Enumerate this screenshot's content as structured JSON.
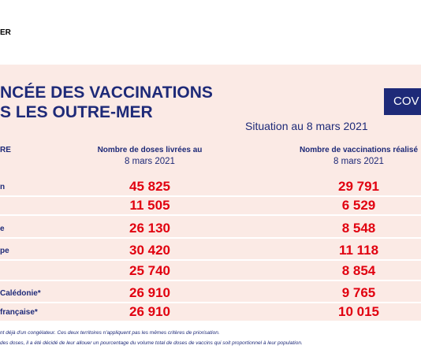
{
  "header": {
    "logo_text": "ER"
  },
  "title": {
    "line1": "NCÉE DES VACCINATIONS",
    "line2": "S LES OUTRE-MER"
  },
  "badge": "COV",
  "situation": "Situation au 8 mars 2021",
  "table": {
    "columns": [
      {
        "line1": "RE",
        "line2": null
      },
      {
        "line1": "Nombre de doses livrées au",
        "line2": "8 mars 2021"
      },
      {
        "line1": "Nombre de vaccinations réalisé",
        "line2": "8 mars 2021"
      }
    ],
    "rows": [
      [
        "n",
        "45 825",
        "29 791"
      ],
      [
        null,
        "11 505",
        "6 529"
      ],
      [
        "e",
        "26 130",
        "8 548"
      ],
      [
        "pe",
        "30 420",
        "11 118"
      ],
      [
        null,
        "25 740",
        "8 854"
      ],
      [
        "Calédonie*",
        "26 910",
        "9 765"
      ],
      [
        "française*",
        "26 910",
        "10 015"
      ]
    ]
  },
  "footnotes": [
    "nt déjà d'un congélateur. Ces deux territoires n'appliquent pas les mêmes critères de priorisation.",
    "des doses, il a été décidé de leur allouer un pourcentage du volume total de doses de vaccins qui soit proportionnel à leur population."
  ]
}
